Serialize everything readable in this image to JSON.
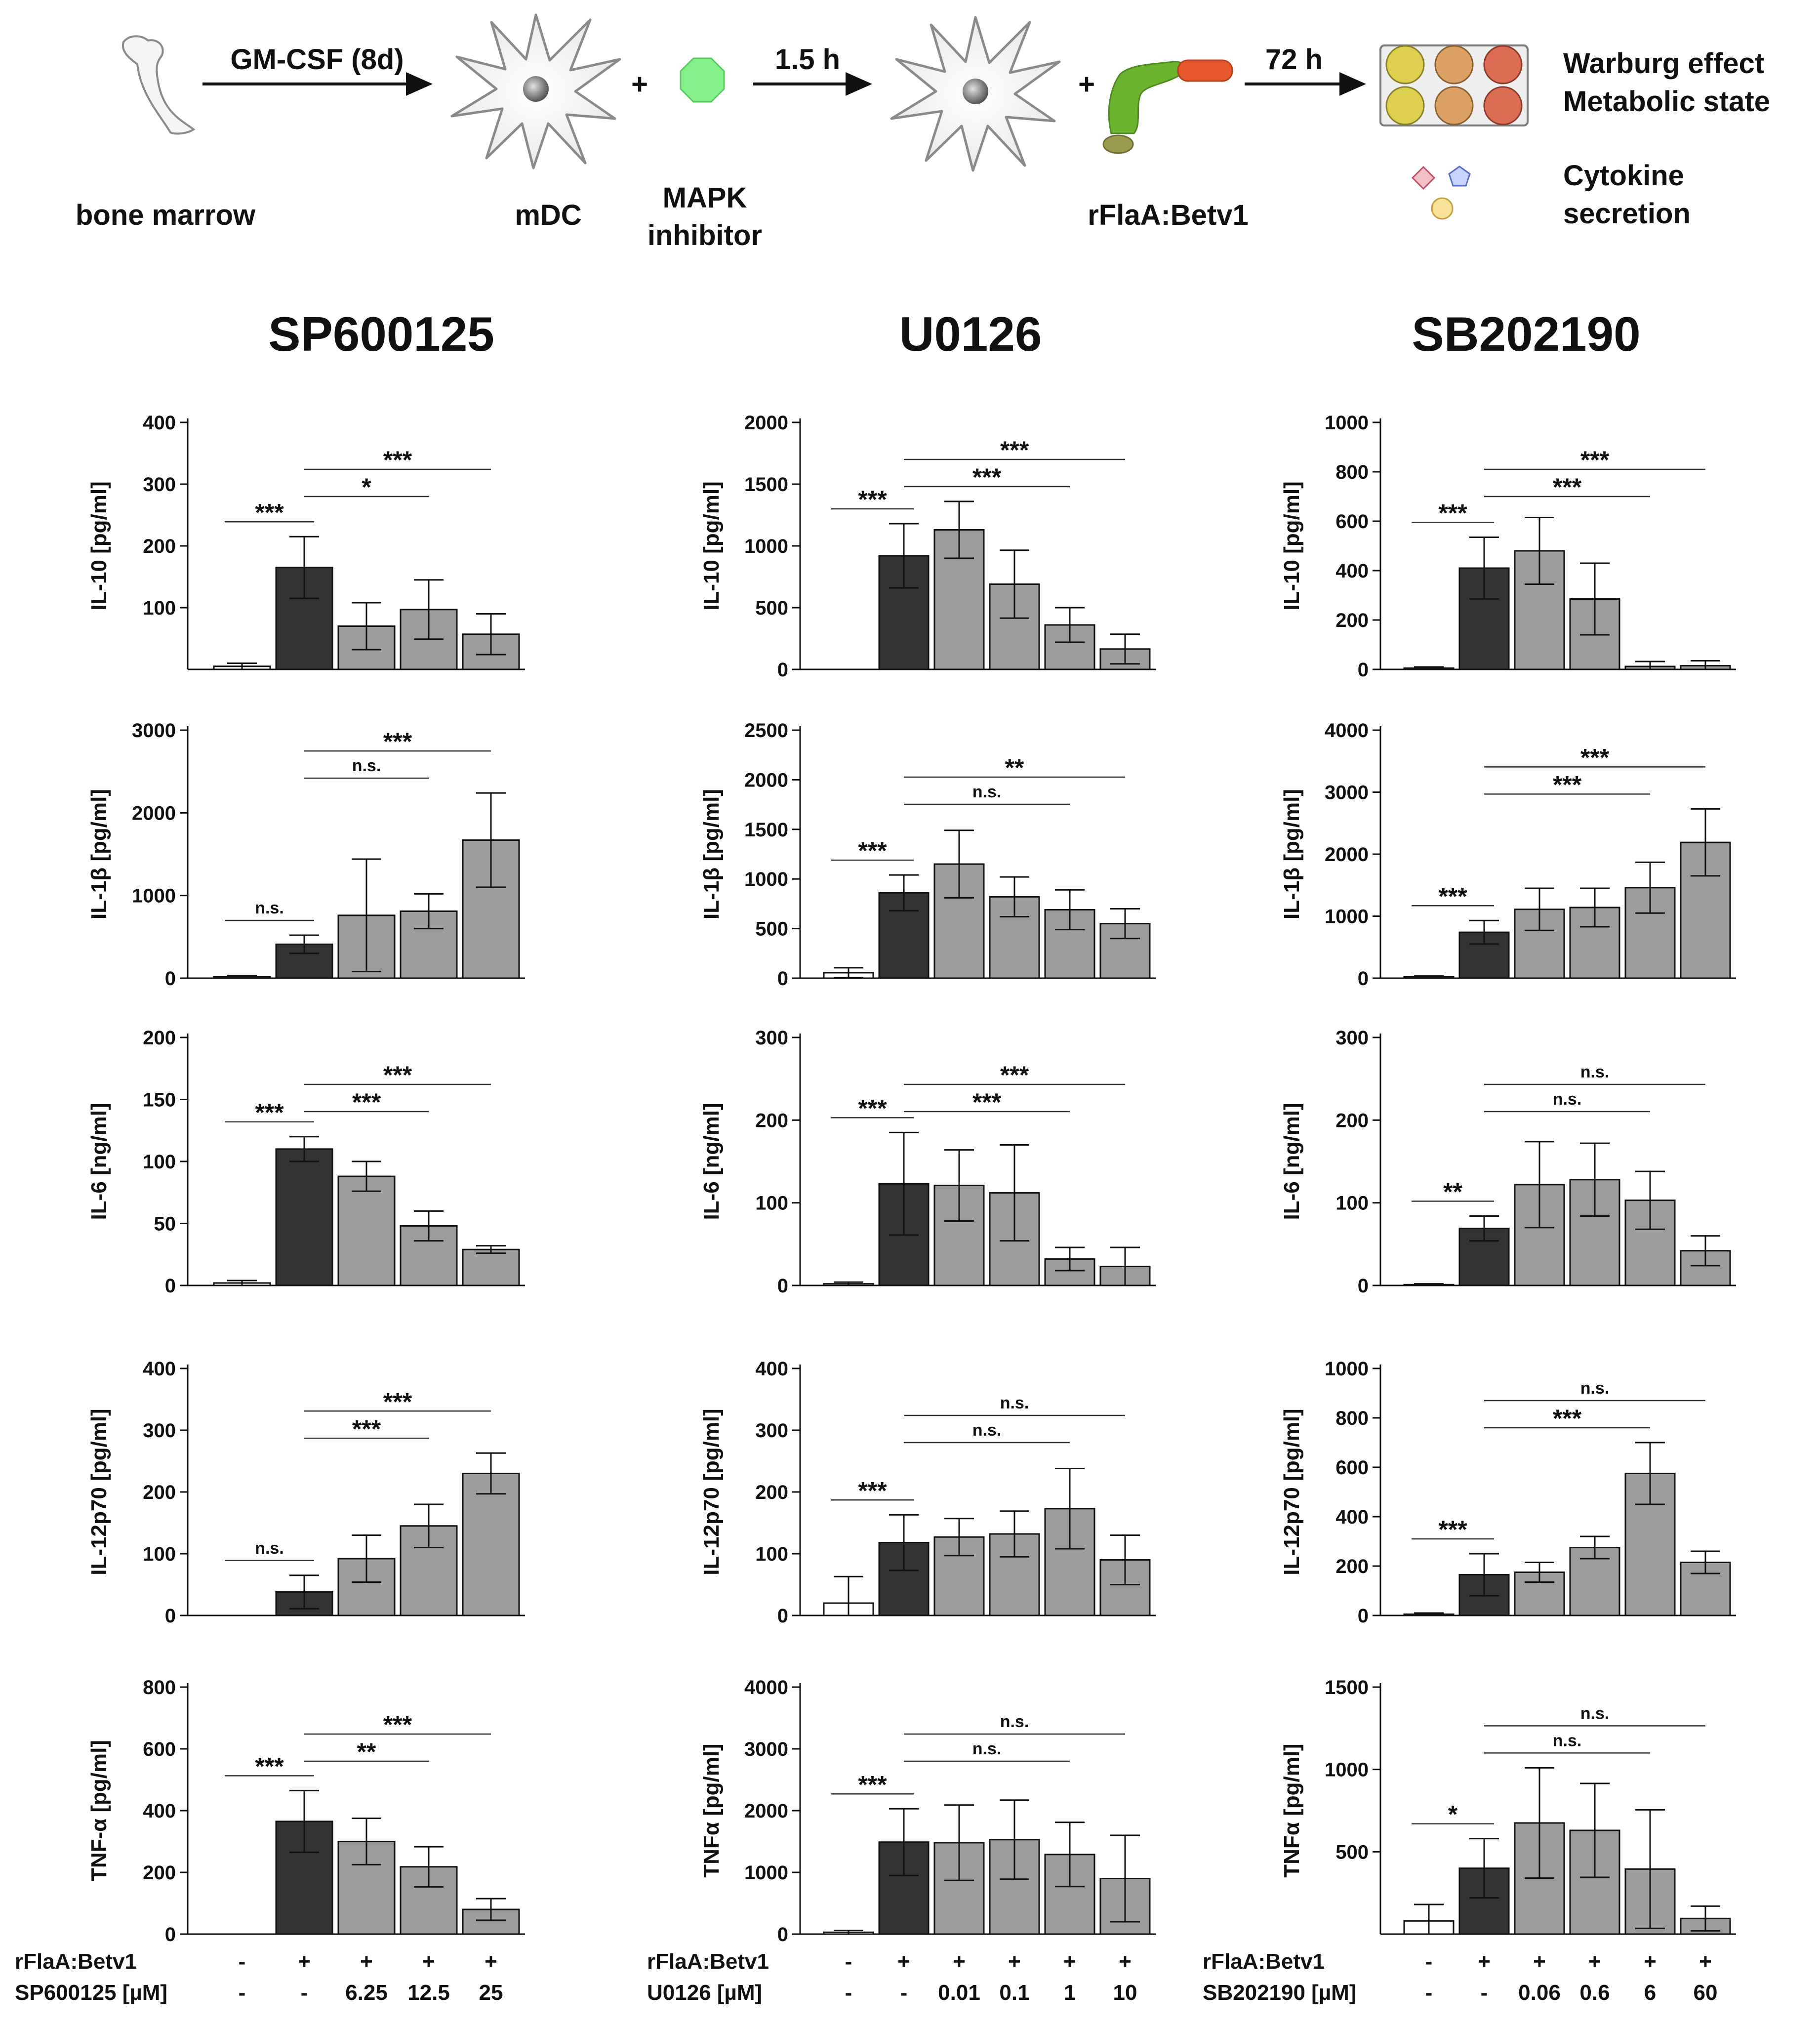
{
  "workflow": {
    "bone_marrow_label": "bone marrow",
    "gmcsf_label": "GM-CSF (8d)",
    "mdc_label": "mDC",
    "plus1": "+",
    "mapk_line1": "MAPK",
    "mapk_line2": "inhibitor",
    "time1": "1.5 h",
    "plus2": "+",
    "rflaa_label": "rFlaA:Betv1",
    "time2": "72 h",
    "warburg_line1": "Warburg effect",
    "warburg_line2": "Metabolic state",
    "cytokine_line1": "Cytokine",
    "cytokine_line2": "secretion"
  },
  "colors": {
    "dark_bar": "#333333",
    "grey_bar": "#9c9c9e",
    "white_bar": "#ffffff",
    "cell_fill": "#f2f2f2",
    "inhibitor_fill": "#84f08a",
    "flagellin": "#6ab42e",
    "betv1": "#e4582c",
    "well_yellow": "#ddd04f",
    "well_tan": "#dba064",
    "well_red": "#dc6d52"
  },
  "panel_titles": [
    "SP600125",
    "U0126",
    "SB202190"
  ],
  "x_axis": {
    "row1_label": "rFlaA:Betv1",
    "row1_values": [
      "-",
      "+",
      "+",
      "+",
      "+",
      "+"
    ],
    "panels": [
      {
        "row2_label": "SP600125 [µM]",
        "row1_values": [
          "-",
          "+",
          "+",
          "+",
          "+"
        ],
        "row2_values": [
          "-",
          "-",
          "6.25",
          "12.5",
          "25"
        ]
      },
      {
        "row2_label": "U0126 [µM]",
        "row1_values": [
          "-",
          "+",
          "+",
          "+",
          "+",
          "+"
        ],
        "row2_values": [
          "-",
          "-",
          "0.01",
          "0.1",
          "1",
          "10"
        ]
      },
      {
        "row2_label": "SB202190 [µM]",
        "row1_values": [
          "-",
          "+",
          "+",
          "+",
          "+",
          "+"
        ],
        "row2_values": [
          "-",
          "-",
          "0.06",
          "0.6",
          "6",
          "60"
        ]
      }
    ]
  },
  "chart_data": [
    {
      "type": "bar",
      "panel": "SP600125",
      "ylabel": "IL-10 [pg/ml]",
      "ylim": [
        0,
        400
      ],
      "yticks": [
        100,
        200,
        300,
        400
      ],
      "values": [
        5,
        165,
        70,
        97,
        57
      ],
      "errors": [
        5,
        50,
        38,
        48,
        33
      ],
      "colors": [
        "white",
        "dark",
        "grey",
        "grey",
        "grey"
      ],
      "sig": [
        {
          "from": 0,
          "to": 1,
          "label": "***",
          "level": 0
        },
        {
          "from": 1,
          "to": 3,
          "label": "*",
          "level": 1
        },
        {
          "from": 1,
          "to": 4,
          "label": "***",
          "level": 2
        }
      ]
    },
    {
      "type": "bar",
      "panel": "U0126",
      "ylabel": "IL-10 [pg/ml]",
      "ylim": [
        0,
        2000
      ],
      "yticks": [
        0,
        500,
        1000,
        1500,
        2000
      ],
      "values": [
        0,
        920,
        1130,
        690,
        360,
        165
      ],
      "errors": [
        0,
        260,
        230,
        275,
        140,
        120
      ],
      "colors": [
        "white",
        "dark",
        "grey",
        "grey",
        "grey",
        "grey"
      ],
      "sig": [
        {
          "from": 0,
          "to": 1,
          "label": "***",
          "level": 0
        },
        {
          "from": 1,
          "to": 4,
          "label": "***",
          "level": 1
        },
        {
          "from": 1,
          "to": 5,
          "label": "***",
          "level": 2
        }
      ]
    },
    {
      "type": "bar",
      "panel": "SB202190",
      "ylabel": "IL-10 [pg/ml]",
      "ylim": [
        0,
        1000
      ],
      "yticks": [
        0,
        200,
        400,
        600,
        800,
        1000
      ],
      "values": [
        5,
        410,
        480,
        285,
        12,
        15
      ],
      "errors": [
        5,
        125,
        135,
        145,
        20,
        20
      ],
      "colors": [
        "white",
        "dark",
        "grey",
        "grey",
        "grey",
        "grey"
      ],
      "sig": [
        {
          "from": 0,
          "to": 1,
          "label": "***",
          "level": 0
        },
        {
          "from": 1,
          "to": 4,
          "label": "***",
          "level": 1
        },
        {
          "from": 1,
          "to": 5,
          "label": "***",
          "level": 2
        }
      ]
    },
    {
      "type": "bar",
      "panel": "SP600125",
      "ylabel": "IL-1β [pg/ml]",
      "ylim": [
        0,
        3000
      ],
      "yticks": [
        0,
        1000,
        2000,
        3000
      ],
      "values": [
        15,
        410,
        760,
        810,
        1670
      ],
      "errors": [
        15,
        110,
        680,
        210,
        570
      ],
      "colors": [
        "white",
        "dark",
        "grey",
        "grey",
        "grey"
      ],
      "sig": [
        {
          "from": 0,
          "to": 1,
          "label": "n.s.",
          "level": 0
        },
        {
          "from": 1,
          "to": 3,
          "label": "n.s.",
          "level": 1
        },
        {
          "from": 1,
          "to": 4,
          "label": "***",
          "level": 2
        }
      ]
    },
    {
      "type": "bar",
      "panel": "U0126",
      "ylabel": "IL-1β [pg/ml]",
      "ylim": [
        0,
        2500
      ],
      "yticks": [
        0,
        500,
        1000,
        1500,
        2000,
        2500
      ],
      "values": [
        55,
        860,
        1150,
        820,
        690,
        550
      ],
      "errors": [
        50,
        180,
        340,
        200,
        200,
        150
      ],
      "colors": [
        "white",
        "dark",
        "grey",
        "grey",
        "grey",
        "grey"
      ],
      "sig": [
        {
          "from": 0,
          "to": 1,
          "label": "***",
          "level": 0
        },
        {
          "from": 1,
          "to": 4,
          "label": "n.s.",
          "level": 1
        },
        {
          "from": 1,
          "to": 5,
          "label": "**",
          "level": 2
        }
      ]
    },
    {
      "type": "bar",
      "panel": "SB202190",
      "ylabel": "IL-1β [pg/ml]",
      "ylim": [
        0,
        4000
      ],
      "yticks": [
        0,
        1000,
        2000,
        3000,
        4000
      ],
      "values": [
        20,
        740,
        1110,
        1140,
        1460,
        2190
      ],
      "errors": [
        15,
        190,
        340,
        310,
        410,
        540
      ],
      "colors": [
        "white",
        "dark",
        "grey",
        "grey",
        "grey",
        "grey"
      ],
      "sig": [
        {
          "from": 0,
          "to": 1,
          "label": "***",
          "level": 0
        },
        {
          "from": 1,
          "to": 4,
          "label": "***",
          "level": 1
        },
        {
          "from": 1,
          "to": 5,
          "label": "***",
          "level": 2
        }
      ]
    },
    {
      "type": "bar",
      "panel": "SP600125",
      "ylabel": "IL-6 [ng/ml]",
      "ylim": [
        0,
        200
      ],
      "yticks": [
        0,
        50,
        100,
        150,
        200
      ],
      "values": [
        2,
        110,
        88,
        48,
        29
      ],
      "errors": [
        2,
        10,
        12,
        12,
        3
      ],
      "colors": [
        "white",
        "dark",
        "grey",
        "grey",
        "grey"
      ],
      "sig": [
        {
          "from": 0,
          "to": 1,
          "label": "***",
          "level": 0
        },
        {
          "from": 1,
          "to": 3,
          "label": "***",
          "level": 1
        },
        {
          "from": 1,
          "to": 4,
          "label": "***",
          "level": 2
        }
      ]
    },
    {
      "type": "bar",
      "panel": "U0126",
      "ylabel": "IL-6 [ng/ml]",
      "ylim": [
        0,
        300
      ],
      "yticks": [
        0,
        100,
        200,
        300
      ],
      "values": [
        2,
        123,
        121,
        112,
        32,
        23
      ],
      "errors": [
        2,
        62,
        43,
        58,
        14,
        23
      ],
      "colors": [
        "white",
        "dark",
        "grey",
        "grey",
        "grey",
        "grey"
      ],
      "sig": [
        {
          "from": 0,
          "to": 1,
          "label": "***",
          "level": 0
        },
        {
          "from": 1,
          "to": 4,
          "label": "***",
          "level": 1
        },
        {
          "from": 1,
          "to": 5,
          "label": "***",
          "level": 2
        }
      ]
    },
    {
      "type": "bar",
      "panel": "SB202190",
      "ylabel": "IL-6 [ng/ml]",
      "ylim": [
        0,
        300
      ],
      "yticks": [
        0,
        100,
        200,
        300
      ],
      "values": [
        1,
        69,
        122,
        128,
        103,
        42
      ],
      "errors": [
        1,
        15,
        52,
        44,
        35,
        18
      ],
      "colors": [
        "white",
        "dark",
        "grey",
        "grey",
        "grey",
        "grey"
      ],
      "sig": [
        {
          "from": 0,
          "to": 1,
          "label": "**",
          "level": 0
        },
        {
          "from": 1,
          "to": 4,
          "label": "n.s.",
          "level": 1
        },
        {
          "from": 1,
          "to": 5,
          "label": "n.s.",
          "level": 2
        }
      ]
    },
    {
      "type": "bar",
      "panel": "SP600125",
      "ylabel": "IL-12p70 [pg/ml]",
      "ylim": [
        0,
        400
      ],
      "yticks": [
        0,
        100,
        200,
        300,
        400
      ],
      "values": [
        0,
        38,
        92,
        145,
        230
      ],
      "errors": [
        0,
        27,
        38,
        35,
        33
      ],
      "colors": [
        "white",
        "dark",
        "grey",
        "grey",
        "grey"
      ],
      "sig": [
        {
          "from": 0,
          "to": 1,
          "label": "n.s.",
          "level": 0
        },
        {
          "from": 1,
          "to": 3,
          "label": "***",
          "level": 1
        },
        {
          "from": 1,
          "to": 4,
          "label": "***",
          "level": 2
        }
      ]
    },
    {
      "type": "bar",
      "panel": "U0126",
      "ylabel": "IL-12p70 [pg/ml]",
      "ylim": [
        0,
        400
      ],
      "yticks": [
        0,
        100,
        200,
        300,
        400
      ],
      "values": [
        20,
        118,
        127,
        132,
        173,
        90
      ],
      "errors": [
        43,
        45,
        30,
        37,
        65,
        40
      ],
      "colors": [
        "white",
        "dark",
        "grey",
        "grey",
        "grey",
        "grey"
      ],
      "sig": [
        {
          "from": 0,
          "to": 1,
          "label": "***",
          "level": 0
        },
        {
          "from": 1,
          "to": 4,
          "label": "n.s.",
          "level": 1
        },
        {
          "from": 1,
          "to": 5,
          "label": "n.s.",
          "level": 2
        }
      ]
    },
    {
      "type": "bar",
      "panel": "SB202190",
      "ylabel": "IL-12p70 [pg/ml]",
      "ylim": [
        0,
        1000
      ],
      "yticks": [
        0,
        200,
        400,
        600,
        800,
        1000
      ],
      "values": [
        5,
        165,
        175,
        275,
        575,
        215
      ],
      "errors": [
        5,
        85,
        40,
        45,
        125,
        45
      ],
      "colors": [
        "white",
        "dark",
        "grey",
        "grey",
        "grey",
        "grey"
      ],
      "sig": [
        {
          "from": 0,
          "to": 1,
          "label": "***",
          "level": 0
        },
        {
          "from": 1,
          "to": 4,
          "label": "***",
          "level": 1
        },
        {
          "from": 1,
          "to": 5,
          "label": "n.s.",
          "level": 2
        }
      ]
    },
    {
      "type": "bar",
      "panel": "SP600125",
      "ylabel": "TNF-α [pg/ml]",
      "ylim": [
        0,
        800
      ],
      "yticks": [
        0,
        200,
        400,
        600,
        800
      ],
      "values": [
        0,
        365,
        300,
        218,
        80
      ],
      "errors": [
        0,
        100,
        75,
        65,
        35
      ],
      "colors": [
        "white",
        "dark",
        "grey",
        "grey",
        "grey"
      ],
      "sig": [
        {
          "from": 0,
          "to": 1,
          "label": "***",
          "level": 0
        },
        {
          "from": 1,
          "to": 3,
          "label": "**",
          "level": 1
        },
        {
          "from": 1,
          "to": 4,
          "label": "***",
          "level": 2
        }
      ]
    },
    {
      "type": "bar",
      "panel": "U0126",
      "ylabel": "TNFα [pg/ml]",
      "ylim": [
        0,
        4000
      ],
      "yticks": [
        0,
        1000,
        2000,
        3000,
        4000
      ],
      "values": [
        30,
        1490,
        1480,
        1530,
        1290,
        900
      ],
      "errors": [
        30,
        540,
        610,
        640,
        520,
        700
      ],
      "colors": [
        "white",
        "dark",
        "grey",
        "grey",
        "grey",
        "grey"
      ],
      "sig": [
        {
          "from": 0,
          "to": 1,
          "label": "***",
          "level": 0
        },
        {
          "from": 1,
          "to": 4,
          "label": "n.s.",
          "level": 1
        },
        {
          "from": 1,
          "to": 5,
          "label": "n.s.",
          "level": 2
        }
      ]
    },
    {
      "type": "bar",
      "panel": "SB202190",
      "ylabel": "TNFα [pg/ml]",
      "ylim": [
        0,
        1500
      ],
      "yticks": [
        500,
        1000,
        1500
      ],
      "values": [
        80,
        400,
        675,
        630,
        395,
        95
      ],
      "errors": [
        100,
        180,
        335,
        285,
        360,
        75
      ],
      "colors": [
        "white",
        "dark",
        "grey",
        "grey",
        "grey",
        "grey"
      ],
      "sig": [
        {
          "from": 0,
          "to": 1,
          "label": "*",
          "level": 0
        },
        {
          "from": 1,
          "to": 4,
          "label": "n.s.",
          "level": 1
        },
        {
          "from": 1,
          "to": 5,
          "label": "n.s.",
          "level": 2
        }
      ]
    }
  ]
}
